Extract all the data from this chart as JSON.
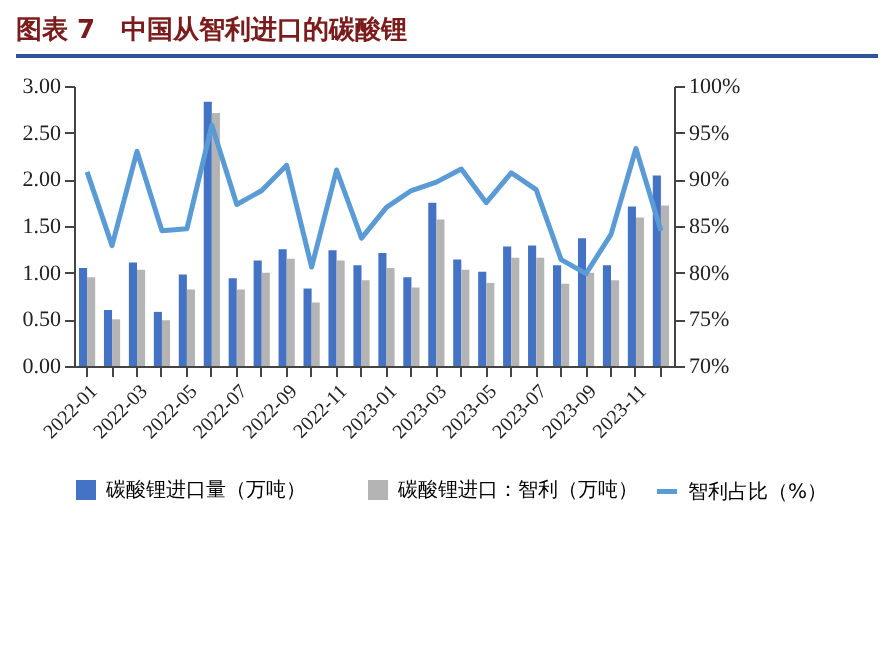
{
  "chart_data": {
    "type": "bar",
    "title": "图表 7　中国从智利进口的碳酸锂",
    "categories": [
      "2022-01",
      null,
      "2022-03",
      null,
      "2022-05",
      null,
      "2022-07",
      null,
      "2022-09",
      null,
      "2022-11",
      null,
      "2023-01",
      null,
      "2023-03",
      null,
      "2023-05",
      null,
      "2023-07",
      null,
      "2023-09",
      null,
      "2023-11",
      null
    ],
    "series": [
      {
        "name": "碳酸锂进口量（万吨）",
        "color": "#4472c4",
        "values": [
          1.05,
          0.6,
          1.11,
          0.58,
          0.98,
          2.83,
          0.94,
          1.13,
          1.25,
          0.83,
          1.24,
          1.08,
          1.21,
          0.95,
          1.75,
          1.14,
          1.01,
          1.28,
          1.29,
          1.08,
          1.37,
          1.08,
          1.71,
          2.04
        ]
      },
      {
        "name": "碳酸锂进口：智利（万吨）",
        "color": "#b4b4b4",
        "values": [
          0.95,
          0.5,
          1.03,
          0.49,
          0.82,
          2.71,
          0.82,
          1.0,
          1.15,
          0.68,
          1.13,
          0.92,
          1.05,
          0.84,
          1.57,
          1.03,
          0.89,
          1.16,
          1.16,
          0.88,
          1.0,
          0.92,
          1.59,
          1.72
        ]
      },
      {
        "name": "智利占比（%）",
        "type": "line",
        "axis": "y2",
        "color": "#5b9bd5",
        "values": [
          90.8,
          82.9,
          93.0,
          84.5,
          84.7,
          95.8,
          87.3,
          88.8,
          91.5,
          80.6,
          91.0,
          83.7,
          87.0,
          88.8,
          89.7,
          91.1,
          87.5,
          90.7,
          88.9,
          81.4,
          79.9,
          84.1,
          93.3,
          84.5
        ]
      }
    ],
    "ylim": [
      0,
      3
    ],
    "yticks": [
      {
        "value": 0,
        "label": "0.00"
      },
      {
        "value": 0.5,
        "label": "0.50"
      },
      {
        "value": 1,
        "label": "1.00"
      },
      {
        "value": 1.5,
        "label": "1.50"
      },
      {
        "value": 2,
        "label": "2.00"
      },
      {
        "value": 2.5,
        "label": "2.50"
      },
      {
        "value": 3,
        "label": "3.00"
      }
    ],
    "y2lim": [
      70,
      100
    ],
    "y2ticks": [
      {
        "value": 70,
        "label": "70%"
      },
      {
        "value": 75,
        "label": "75%"
      },
      {
        "value": 80,
        "label": "80%"
      },
      {
        "value": 85,
        "label": "85%"
      },
      {
        "value": 90,
        "label": "90%"
      },
      {
        "value": 95,
        "label": "95%"
      },
      {
        "value": 100,
        "label": "100%"
      }
    ],
    "legend": "bottom",
    "grid": false
  }
}
